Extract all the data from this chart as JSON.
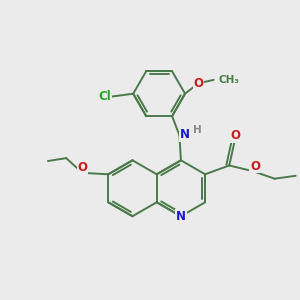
{
  "bg_color": "#ebebeb",
  "bond_color": "#4a7a4a",
  "bond_width": 1.4,
  "atom_colors": {
    "N": "#1a1acc",
    "O": "#cc1a1a",
    "Cl": "#22aa22",
    "H": "#888888",
    "C": "#4a7a4a"
  },
  "font_size": 8.5
}
